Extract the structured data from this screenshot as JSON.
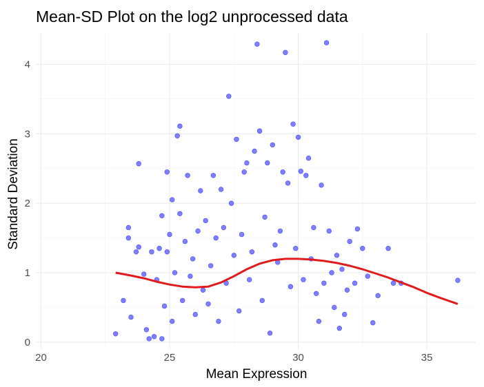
{
  "chart_data": {
    "type": "scatter",
    "title": "Mean-SD Plot on the log2 unprocessed data",
    "xlabel": "Mean Expression",
    "ylabel": "Standard Deviation",
    "xlim": [
      19.8,
      36.9
    ],
    "ylim": [
      -0.1,
      4.45
    ],
    "x_ticks": [
      20,
      25,
      30,
      35
    ],
    "y_ticks": [
      0,
      1,
      2,
      3,
      4
    ],
    "grid": true,
    "legend": "none",
    "point_color": "#0000ff",
    "point_opacity": 0.5,
    "trend_color": "#e31a1c",
    "series": [
      {
        "points": [
          [
            22.9,
            0.12
          ],
          [
            23.2,
            0.6
          ],
          [
            23.4,
            1.5
          ],
          [
            23.4,
            1.65
          ],
          [
            23.5,
            0.36
          ],
          [
            23.7,
            1.3
          ],
          [
            23.8,
            1.37
          ],
          [
            23.8,
            2.57
          ],
          [
            24.0,
            0.98
          ],
          [
            24.1,
            0.18
          ],
          [
            24.2,
            0.05
          ],
          [
            24.3,
            1.3
          ],
          [
            24.4,
            0.08
          ],
          [
            24.5,
            0.9
          ],
          [
            24.6,
            1.35
          ],
          [
            24.7,
            0.05
          ],
          [
            24.7,
            1.82
          ],
          [
            24.8,
            0.52
          ],
          [
            24.9,
            2.45
          ],
          [
            24.9,
            1.3
          ],
          [
            25.0,
            1.55
          ],
          [
            25.1,
            2.05
          ],
          [
            25.1,
            0.3
          ],
          [
            25.2,
            1.0
          ],
          [
            25.3,
            2.97
          ],
          [
            25.4,
            3.11
          ],
          [
            25.4,
            1.85
          ],
          [
            25.5,
            0.6
          ],
          [
            25.6,
            1.45
          ],
          [
            25.7,
            2.4
          ],
          [
            25.8,
            0.95
          ],
          [
            25.9,
            1.2
          ],
          [
            26.0,
            0.4
          ],
          [
            26.1,
            1.6
          ],
          [
            26.2,
            2.18
          ],
          [
            26.3,
            0.75
          ],
          [
            26.4,
            1.75
          ],
          [
            26.5,
            0.55
          ],
          [
            26.6,
            1.1
          ],
          [
            26.7,
            2.4
          ],
          [
            26.8,
            1.5
          ],
          [
            26.9,
            0.3
          ],
          [
            27.0,
            2.2
          ],
          [
            27.1,
            1.65
          ],
          [
            27.2,
            0.85
          ],
          [
            27.3,
            3.54
          ],
          [
            27.4,
            2.0
          ],
          [
            27.5,
            1.25
          ],
          [
            27.6,
            2.92
          ],
          [
            27.7,
            0.45
          ],
          [
            27.8,
            1.55
          ],
          [
            27.9,
            2.45
          ],
          [
            28.0,
            2.58
          ],
          [
            28.1,
            0.9
          ],
          [
            28.2,
            1.3
          ],
          [
            28.3,
            2.75
          ],
          [
            28.4,
            4.29
          ],
          [
            28.5,
            3.04
          ],
          [
            28.6,
            0.6
          ],
          [
            28.7,
            1.8
          ],
          [
            28.8,
            2.58
          ],
          [
            28.9,
            0.13
          ],
          [
            29.0,
            2.84
          ],
          [
            29.1,
            1.4
          ],
          [
            29.2,
            1.15
          ],
          [
            29.3,
            1.6
          ],
          [
            29.4,
            2.45
          ],
          [
            29.5,
            4.17
          ],
          [
            29.6,
            2.29
          ],
          [
            29.7,
            0.8
          ],
          [
            29.8,
            3.14
          ],
          [
            29.9,
            1.35
          ],
          [
            30.0,
            2.95
          ],
          [
            30.1,
            2.46
          ],
          [
            30.2,
            0.9
          ],
          [
            30.3,
            2.4
          ],
          [
            30.4,
            2.65
          ],
          [
            30.5,
            1.2
          ],
          [
            30.6,
            1.65
          ],
          [
            30.7,
            0.7
          ],
          [
            30.8,
            0.3
          ],
          [
            30.9,
            2.26
          ],
          [
            31.0,
            0.85
          ],
          [
            31.1,
            4.31
          ],
          [
            31.2,
            1.6
          ],
          [
            31.3,
            1.0
          ],
          [
            31.4,
            0.5
          ],
          [
            31.5,
            1.25
          ],
          [
            31.6,
            0.2
          ],
          [
            31.7,
            1.05
          ],
          [
            31.8,
            0.4
          ],
          [
            31.9,
            0.75
          ],
          [
            32.0,
            1.45
          ],
          [
            32.2,
            0.85
          ],
          [
            32.3,
            1.63
          ],
          [
            32.5,
            1.35
          ],
          [
            32.7,
            0.95
          ],
          [
            32.9,
            0.28
          ],
          [
            33.1,
            0.67
          ],
          [
            33.5,
            1.35
          ],
          [
            33.7,
            0.85
          ],
          [
            34.0,
            0.85
          ],
          [
            36.2,
            0.89
          ]
        ]
      }
    ],
    "trend": {
      "x": [
        22.9,
        23.5,
        24.0,
        24.5,
        25.0,
        25.5,
        26.0,
        26.5,
        27.0,
        27.5,
        28.0,
        28.5,
        29.0,
        29.5,
        30.0,
        30.5,
        31.0,
        31.5,
        32.0,
        32.5,
        33.0,
        33.5,
        34.0,
        34.5,
        35.0,
        35.5,
        36.2
      ],
      "y": [
        1.0,
        0.96,
        0.92,
        0.87,
        0.83,
        0.8,
        0.79,
        0.8,
        0.86,
        0.95,
        1.05,
        1.13,
        1.18,
        1.2,
        1.2,
        1.19,
        1.17,
        1.14,
        1.1,
        1.05,
        0.99,
        0.93,
        0.86,
        0.79,
        0.71,
        0.64,
        0.55
      ]
    }
  }
}
